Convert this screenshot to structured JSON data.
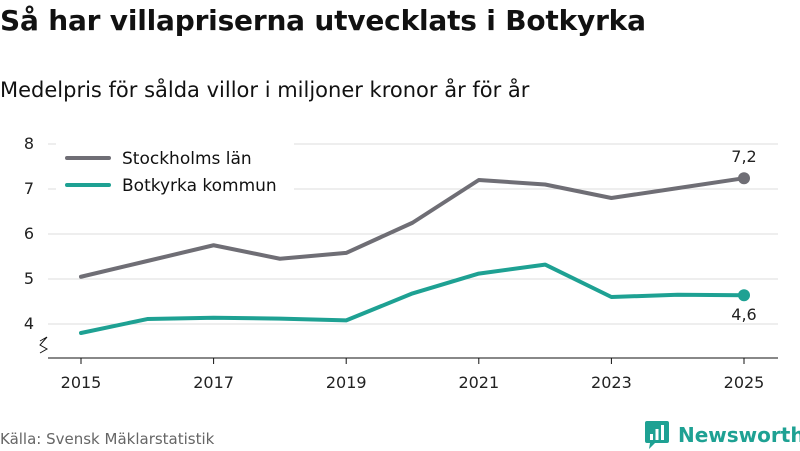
{
  "title": "Så har villapriserna utvecklats i Botkyrka",
  "subtitle": "Medelpris för sålda villor i miljoner kronor år för år",
  "source": "Källa: Svensk Mäklarstatistik",
  "brand": "Newsworthy",
  "colors": {
    "stockholm": "#6f6e75",
    "botkyrka": "#1ea193",
    "axis": "#111111",
    "grid": "#dddddd",
    "brand": "#1ea193"
  },
  "chart_data": {
    "type": "line",
    "title": "Så har villapriserna utvecklats i Botkyrka",
    "subtitle": "Medelpris för sålda villor i miljoner kronor år för år",
    "xlabel": "",
    "ylabel": "",
    "x": [
      2015,
      2016,
      2017,
      2018,
      2019,
      2020,
      2021,
      2022,
      2023,
      2024,
      2025
    ],
    "xticks": [
      "2015",
      "2017",
      "2019",
      "2021",
      "2023",
      "2025"
    ],
    "yticks": [
      "4",
      "5",
      "6",
      "7",
      "8"
    ],
    "ylim": [
      3.6,
      8
    ],
    "grid": true,
    "legend_position": "top-left",
    "series": [
      {
        "name": "Stockholms län",
        "color": "#6f6e75",
        "values": [
          5.05,
          5.4,
          5.75,
          5.45,
          5.58,
          6.25,
          7.2,
          7.1,
          6.8,
          7.02,
          7.24
        ],
        "end_label": "7,2"
      },
      {
        "name": "Botkyrka kommun",
        "color": "#1ea193",
        "values": [
          3.8,
          4.11,
          4.14,
          4.12,
          4.08,
          4.68,
          5.12,
          5.32,
          4.6,
          4.65,
          4.64
        ],
        "end_label": "4,6"
      }
    ]
  }
}
